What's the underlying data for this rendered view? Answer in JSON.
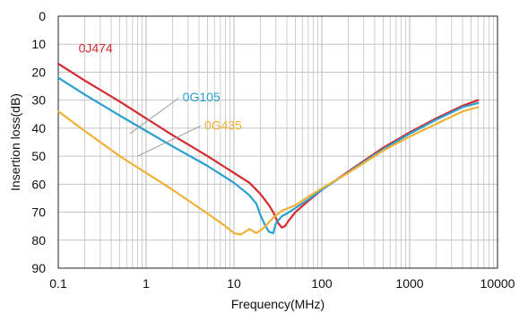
{
  "chart_data": {
    "type": "line",
    "title": "",
    "xlabel": "Frequency(MHz)",
    "ylabel": "Insertion loss(dB)",
    "x_scale": "log",
    "xlim": [
      0.1,
      10000
    ],
    "ylim": [
      0,
      90
    ],
    "y_inverted": true,
    "grid": true,
    "x_ticks": [
      0.1,
      1,
      10,
      100,
      1000,
      10000
    ],
    "x_tick_labels": [
      "0.1",
      "1",
      "10",
      "100",
      "1000",
      "10000"
    ],
    "y_ticks": [
      0,
      10,
      20,
      30,
      40,
      50,
      60,
      70,
      80,
      90
    ],
    "y_tick_labels": [
      "0",
      "10",
      "20",
      "30",
      "40",
      "50",
      "60",
      "70",
      "80",
      "90"
    ],
    "series": [
      {
        "name": "0J474",
        "color": "#d42a2f",
        "label_position": [
          0.17,
          13
        ],
        "points": [
          [
            0.1,
            17
          ],
          [
            0.2,
            23
          ],
          [
            0.5,
            30.5
          ],
          [
            1,
            36.5
          ],
          [
            2,
            42.5
          ],
          [
            5,
            50
          ],
          [
            10,
            56
          ],
          [
            15,
            59.5
          ],
          [
            20,
            63.5
          ],
          [
            25,
            67.5
          ],
          [
            28,
            70
          ],
          [
            32,
            74
          ],
          [
            35,
            75.5
          ],
          [
            38,
            75
          ],
          [
            42,
            73
          ],
          [
            50,
            70
          ],
          [
            70,
            66
          ],
          [
            100,
            62
          ],
          [
            200,
            55.5
          ],
          [
            500,
            47
          ],
          [
            1000,
            41.5
          ],
          [
            2000,
            36.5
          ],
          [
            4000,
            32
          ],
          [
            6000,
            30
          ]
        ]
      },
      {
        "name": "0G105",
        "color": "#2a9fd2",
        "label_position": [
          2.6,
          30.5
        ],
        "leader_end": [
          0.65,
          42
        ],
        "points": [
          [
            0.1,
            22
          ],
          [
            0.2,
            28
          ],
          [
            0.5,
            35.5
          ],
          [
            1,
            41
          ],
          [
            2,
            46.5
          ],
          [
            5,
            53.5
          ],
          [
            10,
            59.5
          ],
          [
            15,
            64
          ],
          [
            18,
            67
          ],
          [
            20,
            71
          ],
          [
            22,
            74
          ],
          [
            25,
            77
          ],
          [
            28,
            77.5
          ],
          [
            30,
            74
          ],
          [
            35,
            71.5
          ],
          [
            40,
            70.5
          ],
          [
            50,
            68.5
          ],
          [
            70,
            65.5
          ],
          [
            100,
            62
          ],
          [
            200,
            55.8
          ],
          [
            500,
            47.5
          ],
          [
            1000,
            42
          ],
          [
            2000,
            37
          ],
          [
            4000,
            32.5
          ],
          [
            6000,
            31
          ]
        ]
      },
      {
        "name": "0G435",
        "color": "#f0b236",
        "label_position": [
          4.6,
          40.5
        ],
        "leader_end": [
          0.8,
          50
        ],
        "points": [
          [
            0.1,
            34
          ],
          [
            0.2,
            41
          ],
          [
            0.5,
            50
          ],
          [
            1,
            56
          ],
          [
            2,
            62
          ],
          [
            5,
            70.5
          ],
          [
            8,
            75
          ],
          [
            10,
            77.5
          ],
          [
            12,
            78
          ],
          [
            15,
            76
          ],
          [
            18,
            77.5
          ],
          [
            22,
            75.5
          ],
          [
            28,
            72
          ],
          [
            35,
            69.5
          ],
          [
            50,
            67.5
          ],
          [
            70,
            64.5
          ],
          [
            100,
            61.5
          ],
          [
            200,
            56
          ],
          [
            500,
            48
          ],
          [
            1000,
            43
          ],
          [
            2000,
            38.5
          ],
          [
            4000,
            34
          ],
          [
            6000,
            32.5
          ]
        ]
      }
    ]
  }
}
